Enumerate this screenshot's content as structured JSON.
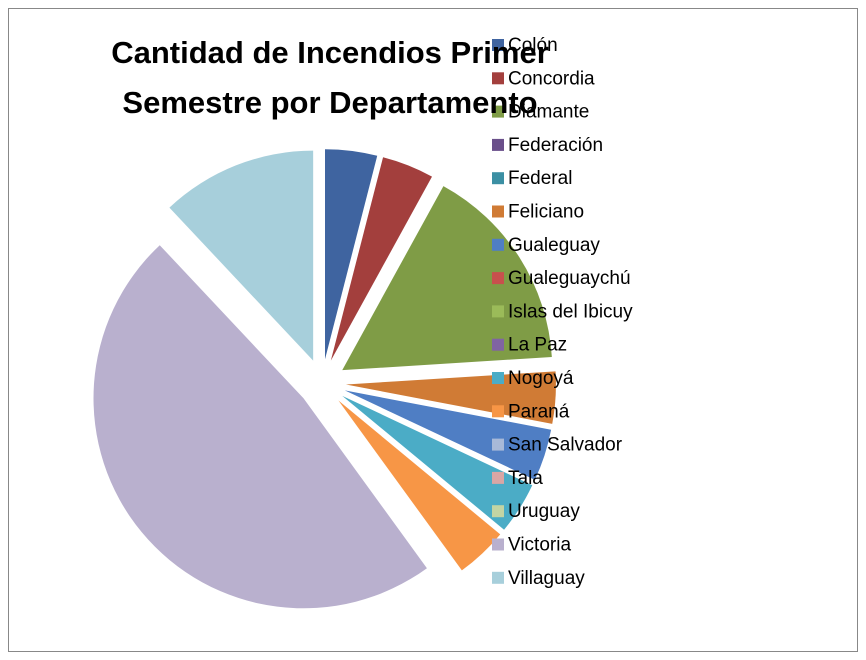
{
  "chart_data": {
    "type": "pie",
    "title": "Cantidad de  Incendios Primer Semestre por Departamento",
    "categories": [
      "Colón",
      "Concordia",
      "Diamante",
      "Federación",
      "Federal",
      "Feliciano",
      "Gualeguay",
      "Gualeguaychú",
      "Islas del Ibicuy",
      "La Paz",
      "Nogoyá",
      "Paraná",
      "San Salvador",
      "Tala",
      "Uruguay",
      "Victoria",
      "Villaguay"
    ],
    "values": [
      1,
      1,
      4,
      0,
      0,
      1,
      1,
      0,
      0,
      0,
      1,
      1,
      0,
      0,
      0,
      12,
      3
    ],
    "colors": [
      "#3f64a0",
      "#a33f3d",
      "#7f9c46",
      "#6a4f8a",
      "#3b8fa3",
      "#d07b35",
      "#4f7ec4",
      "#c8504d",
      "#9bbb59",
      "#8064a2",
      "#4bacc6",
      "#f79646",
      "#a8b9d8",
      "#d9a6a5",
      "#c3d5a4",
      "#b9b0ce",
      "#a7cfdb"
    ],
    "legend": "right"
  }
}
